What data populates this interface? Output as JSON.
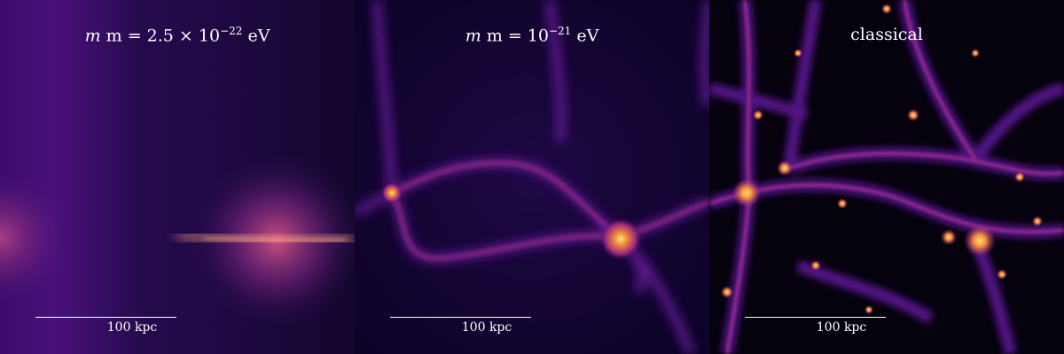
{
  "panels": [
    {
      "label": {
        "prefix": "m = 2.5 × 10",
        "exponent": "−22",
        "suffix": " eV"
      },
      "scale_bar": "100 kpc"
    },
    {
      "label": {
        "prefix": "m = 10",
        "exponent": "−21",
        "suffix": " eV"
      },
      "scale_bar": "100 kpc"
    },
    {
      "label": {
        "text": "classical"
      },
      "scale_bar": "100 kpc"
    }
  ],
  "colors": {
    "background_dark": "#0a0420",
    "mid_purple": "#6a1fa0",
    "magenta": "#b33290",
    "hot_orange": "#f7a13a",
    "core_yellow": "#fde37a"
  }
}
